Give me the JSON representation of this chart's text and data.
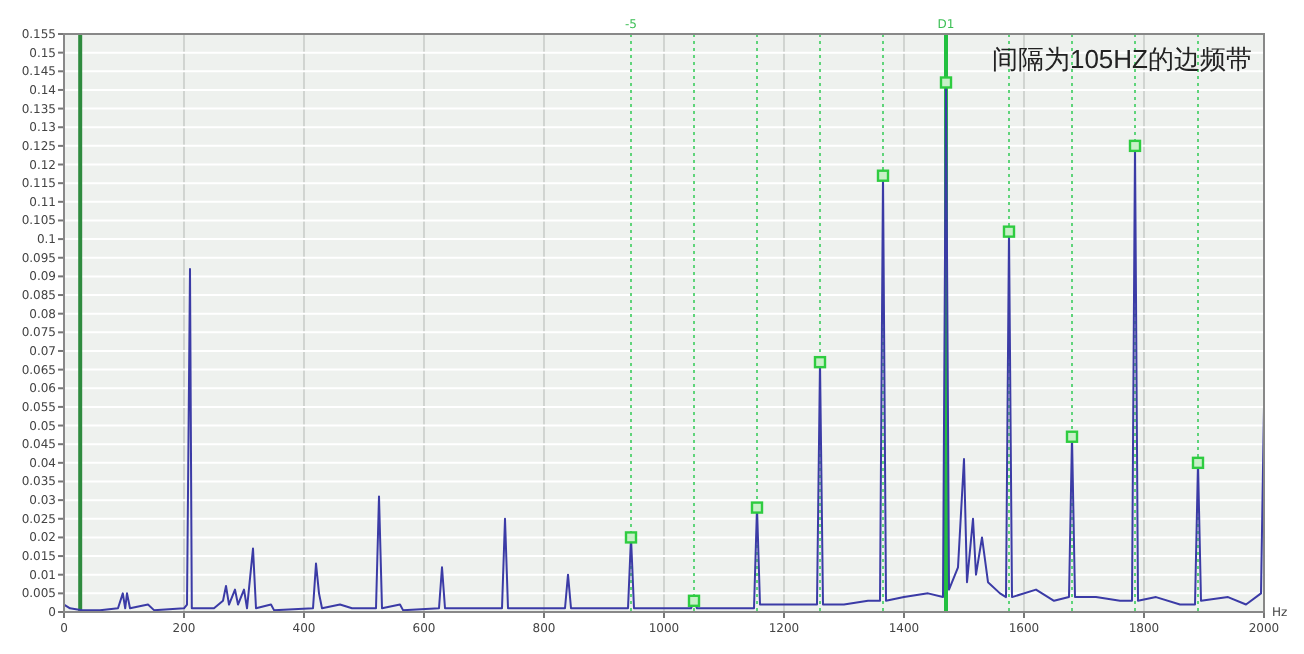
{
  "chart_data": {
    "type": "line",
    "xlabel": "Hz",
    "xlim": [
      0,
      2000
    ],
    "ylim": [
      0,
      0.155
    ],
    "xticks": [
      0,
      200,
      400,
      600,
      800,
      1000,
      1200,
      1400,
      1600,
      1800,
      2000
    ],
    "yticks": [
      0,
      0.005,
      0.01,
      0.015,
      0.02,
      0.025,
      0.03,
      0.035,
      0.04,
      0.045,
      0.05,
      0.055,
      0.06,
      0.065,
      0.07,
      0.075,
      0.08,
      0.085,
      0.09,
      0.095,
      0.1,
      0.105,
      0.11,
      0.115,
      0.12,
      0.125,
      0.13,
      0.135,
      0.14,
      0.145,
      0.15,
      0.155
    ],
    "grid": true,
    "series": [
      {
        "color": "#3b3ba6",
        "x": [
          0,
          10,
          30,
          60,
          90,
          98,
          102,
          105,
          110,
          140,
          150,
          200,
          205,
          210,
          213,
          250,
          265,
          270,
          275,
          285,
          290,
          300,
          305,
          315,
          320,
          345,
          350,
          415,
          420,
          425,
          430,
          460,
          480,
          520,
          525,
          530,
          560,
          565,
          625,
          630,
          635,
          700,
          730,
          735,
          740,
          800,
          835,
          840,
          845,
          900,
          940,
          945,
          950,
          1000,
          1045,
          1050,
          1055,
          1100,
          1150,
          1155,
          1160,
          1200,
          1255,
          1260,
          1265,
          1300,
          1340,
          1360,
          1365,
          1370,
          1400,
          1440,
          1465,
          1470,
          1475,
          1490,
          1500,
          1505,
          1515,
          1520,
          1530,
          1540,
          1560,
          1570,
          1575,
          1580,
          1620,
          1650,
          1675,
          1680,
          1685,
          1720,
          1760,
          1780,
          1785,
          1790,
          1820,
          1860,
          1885,
          1890,
          1895,
          1940,
          1970,
          1995,
          2000
        ],
        "values": [
          0.002,
          0.001,
          0.0005,
          0.0005,
          0.001,
          0.005,
          0.001,
          0.005,
          0.001,
          0.002,
          0.0005,
          0.001,
          0.002,
          0.092,
          0.001,
          0.001,
          0.003,
          0.007,
          0.002,
          0.006,
          0.002,
          0.006,
          0.001,
          0.017,
          0.001,
          0.002,
          0.0005,
          0.001,
          0.013,
          0.005,
          0.001,
          0.002,
          0.001,
          0.001,
          0.031,
          0.001,
          0.002,
          0.0005,
          0.001,
          0.012,
          0.001,
          0.001,
          0.001,
          0.025,
          0.001,
          0.001,
          0.001,
          0.01,
          0.001,
          0.001,
          0.001,
          0.02,
          0.001,
          0.001,
          0.001,
          0.003,
          0.001,
          0.001,
          0.001,
          0.028,
          0.002,
          0.002,
          0.002,
          0.067,
          0.002,
          0.002,
          0.003,
          0.003,
          0.117,
          0.003,
          0.004,
          0.005,
          0.004,
          0.142,
          0.006,
          0.012,
          0.041,
          0.008,
          0.025,
          0.01,
          0.02,
          0.008,
          0.005,
          0.004,
          0.102,
          0.004,
          0.006,
          0.003,
          0.004,
          0.047,
          0.004,
          0.004,
          0.003,
          0.003,
          0.125,
          0.003,
          0.004,
          0.002,
          0.002,
          0.04,
          0.003,
          0.004,
          0.002,
          0.005,
          0.055
        ]
      },
      {
        "type": "scatter",
        "color": "#2ecc40",
        "marker": "square",
        "x": [
          945,
          1050,
          1155,
          1260,
          1365,
          1470,
          1575,
          1680,
          1785,
          1890
        ],
        "values": [
          0.02,
          0.003,
          0.028,
          0.067,
          0.117,
          0.142,
          0.102,
          0.047,
          0.125,
          0.04
        ]
      }
    ],
    "ref_lines": [
      {
        "axis": "x",
        "value": 27,
        "color": "#2e8b3e",
        "line_style": "solid"
      },
      {
        "axis": "x",
        "value": 945,
        "color": "#5fd47a",
        "line_style": "dotted"
      },
      {
        "axis": "x",
        "value": 1050,
        "color": "#5fd47a",
        "line_style": "dotted"
      },
      {
        "axis": "x",
        "value": 1155,
        "color": "#5fd47a",
        "line_style": "dotted"
      },
      {
        "axis": "x",
        "value": 1260,
        "color": "#5fd47a",
        "line_style": "dotted"
      },
      {
        "axis": "x",
        "value": 1365,
        "color": "#5fd47a",
        "line_style": "dotted"
      },
      {
        "axis": "x",
        "value": 1470,
        "color": "#22c040",
        "line_style": "solid"
      },
      {
        "axis": "x",
        "value": 1575,
        "color": "#5fd47a",
        "line_style": "dotted"
      },
      {
        "axis": "x",
        "value": 1680,
        "color": "#5fd47a",
        "line_style": "dotted"
      },
      {
        "axis": "x",
        "value": 1785,
        "color": "#5fd47a",
        "line_style": "dotted"
      },
      {
        "axis": "x",
        "value": 1890,
        "color": "#5fd47a",
        "line_style": "dotted"
      }
    ],
    "annotations": [
      "间隔为105HZ的边频带",
      {
        "text": "-5",
        "x": 945,
        "y": 0.155
      },
      {
        "text": "D1",
        "x": 1470,
        "y": 0.155
      }
    ]
  }
}
